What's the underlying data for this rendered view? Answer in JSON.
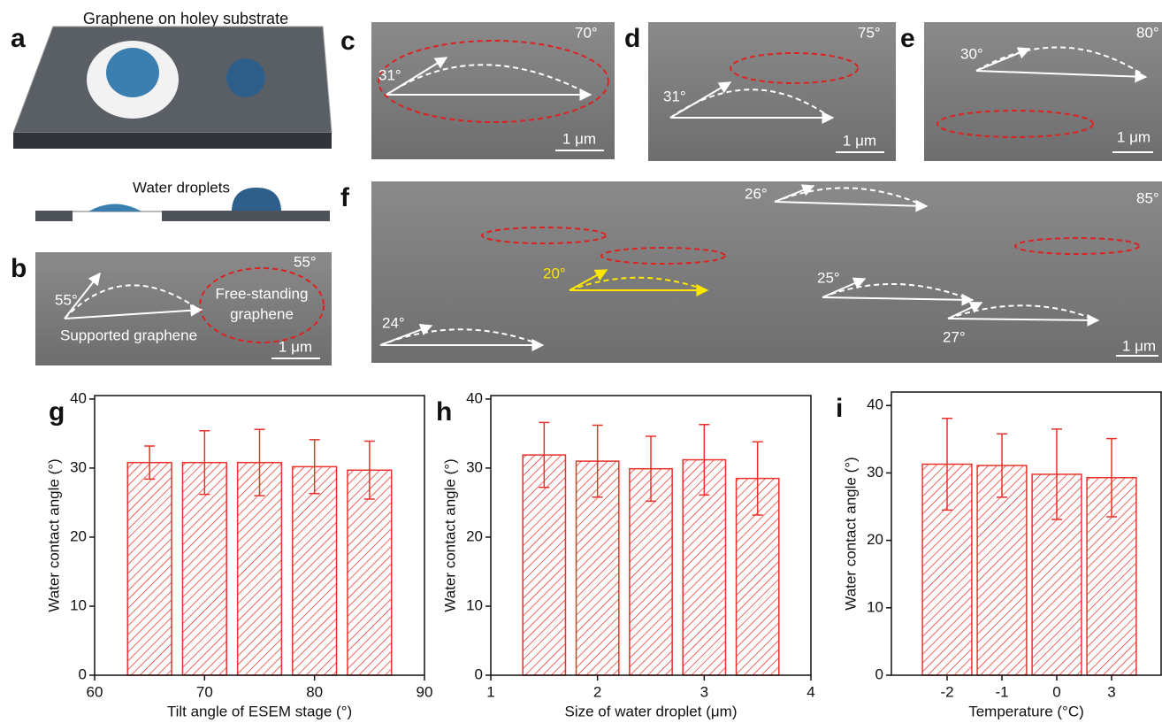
{
  "figure": {
    "a": {
      "label": "a",
      "title": "Graphene on holey substrate",
      "subtitle": "Water droplets"
    },
    "b": {
      "label": "b",
      "tilt": "55°",
      "angle": "55°",
      "free": [
        "Free-standing",
        "graphene"
      ],
      "supported": "Supported graphene",
      "scale": "1 μm"
    },
    "c": {
      "label": "c",
      "tilt": "70°",
      "angles": [
        "31°"
      ],
      "scale": "1 μm"
    },
    "d": {
      "label": "d",
      "tilt": "75°",
      "angles": [
        "31°"
      ],
      "scale": "1 μm"
    },
    "e": {
      "label": "e",
      "tilt": "80°",
      "angles": [
        "30°"
      ],
      "scale": "1 μm"
    },
    "f": {
      "label": "f",
      "tilt": "85°",
      "angles": [
        "26°",
        "20°",
        "25°",
        "24°",
        "27°"
      ],
      "scale": "1 μm"
    }
  },
  "chart_data": [
    {
      "type": "bar",
      "panel": "g",
      "xlabel": "Tilt angle of ESEM stage (°)",
      "ylabel": "Water contact angle (°)",
      "x": [
        65,
        70,
        75,
        80,
        85
      ],
      "values": [
        30.8,
        30.8,
        30.8,
        30.2,
        29.7
      ],
      "errors": [
        2.4,
        4.6,
        4.8,
        3.9,
        4.2
      ],
      "xlim": [
        60,
        90
      ],
      "xticks": [
        60,
        70,
        80,
        90
      ],
      "ylim": [
        0,
        40.5
      ],
      "yticks": [
        0,
        10,
        20,
        30,
        40
      ],
      "color": "#e8322b"
    },
    {
      "type": "bar",
      "panel": "h",
      "xlabel": "Size of water droplet (μm)",
      "ylabel": "Water contact angle (°)",
      "x": [
        1.5,
        2,
        2.5,
        3,
        3.5
      ],
      "values": [
        31.9,
        31.0,
        29.9,
        31.2,
        28.5
      ],
      "errors": [
        4.7,
        5.2,
        4.7,
        5.1,
        5.3
      ],
      "xlim": [
        1,
        4
      ],
      "xticks": [
        1,
        2,
        3,
        4
      ],
      "ylim": [
        0,
        40.5
      ],
      "yticks": [
        0,
        10,
        20,
        30,
        40
      ],
      "color": "#e8322b"
    },
    {
      "type": "bar",
      "panel": "i",
      "xlabel": "Temperature (°C)",
      "ylabel": "Water contact angle (°)",
      "categories": [
        "-2",
        "-1",
        "0",
        "3"
      ],
      "values": [
        31.3,
        31.1,
        29.8,
        29.3
      ],
      "errors": [
        6.8,
        4.7,
        6.7,
        5.8
      ],
      "ylim": [
        0,
        42
      ],
      "yticks": [
        0,
        10,
        20,
        30,
        40
      ],
      "color": "#e8322b"
    }
  ]
}
